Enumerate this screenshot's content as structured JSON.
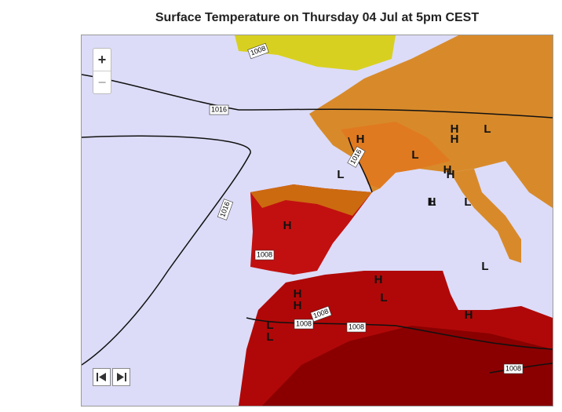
{
  "title": "Surface Temperature on Thursday 04 Jul at 5pm CEST",
  "zoom": {
    "in": "+",
    "out": "−"
  },
  "isobar_labels": [
    "1008",
    "1016",
    "1016",
    "1016",
    "1008",
    "1008",
    "1008",
    "1008",
    "1008"
  ],
  "pressure_centers": [
    "H",
    "L",
    "H",
    "L",
    "H",
    "H",
    "L",
    "H",
    "L",
    "H",
    "H",
    "L",
    "L",
    "H",
    "H",
    "L",
    "L",
    "H",
    "L",
    "H"
  ]
}
